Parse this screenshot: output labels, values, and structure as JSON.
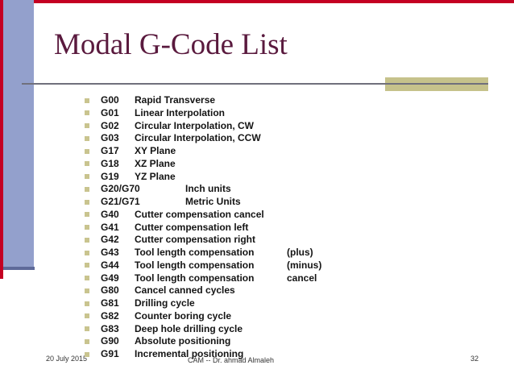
{
  "slide": {
    "title": "Modal G-Code List"
  },
  "list": {
    "items": [
      {
        "code": "G00",
        "desc": "Rapid Transverse"
      },
      {
        "code": "G01",
        "desc": "Linear Interpolation"
      },
      {
        "code": "G02",
        "desc": "Circular Interpolation, CW"
      },
      {
        "code": "G03",
        "desc": "Circular Interpolation, CCW"
      },
      {
        "code": "G17",
        "desc": "XY Plane"
      },
      {
        "code": "G18",
        "desc": "XZ Plane"
      },
      {
        "code": "G19",
        "desc": "YZ Plane"
      },
      {
        "code": "G20/G70",
        "desc": "Inch units"
      },
      {
        "code": "G21/G71",
        "desc": "Metric Units"
      },
      {
        "code": "G40",
        "desc": "Cutter compensation cancel"
      },
      {
        "code": "G41",
        "desc": "Cutter compensation left"
      },
      {
        "code": "G42",
        "desc": "Cutter compensation right"
      },
      {
        "code": "G43",
        "desc": "Tool length compensation",
        "extra": "(plus)"
      },
      {
        "code": "G44",
        "desc": "Tool length compensation",
        "extra": "(minus)"
      },
      {
        "code": "G49",
        "desc": "Tool length compensation",
        "extra": "cancel"
      },
      {
        "code": "G80",
        "desc": "Cancel canned cycles"
      },
      {
        "code": "G81",
        "desc": "Drilling cycle"
      },
      {
        "code": "G82",
        "desc": "Counter boring cycle"
      },
      {
        "code": "G83",
        "desc": "Deep hole drilling cycle"
      },
      {
        "code": "G90",
        "desc": "Absolute positioning"
      },
      {
        "code": "G91",
        "desc": "Incremental positioning"
      }
    ]
  },
  "footer": {
    "date": "20 July 2015",
    "credit": "CAM -- Dr. ahmad Almaleh",
    "page_number": "32"
  },
  "colors": {
    "accent_red": "#c40022",
    "sidebar_blue": "#93a0cc",
    "sidebar_edge_blue": "#5e6a99",
    "rule_gray": "#70707c",
    "tan_accent": "#c6c28b",
    "bullet_khaki": "#c9c48f",
    "title_maroon": "#5a1a3e",
    "body_text": "#141414"
  }
}
